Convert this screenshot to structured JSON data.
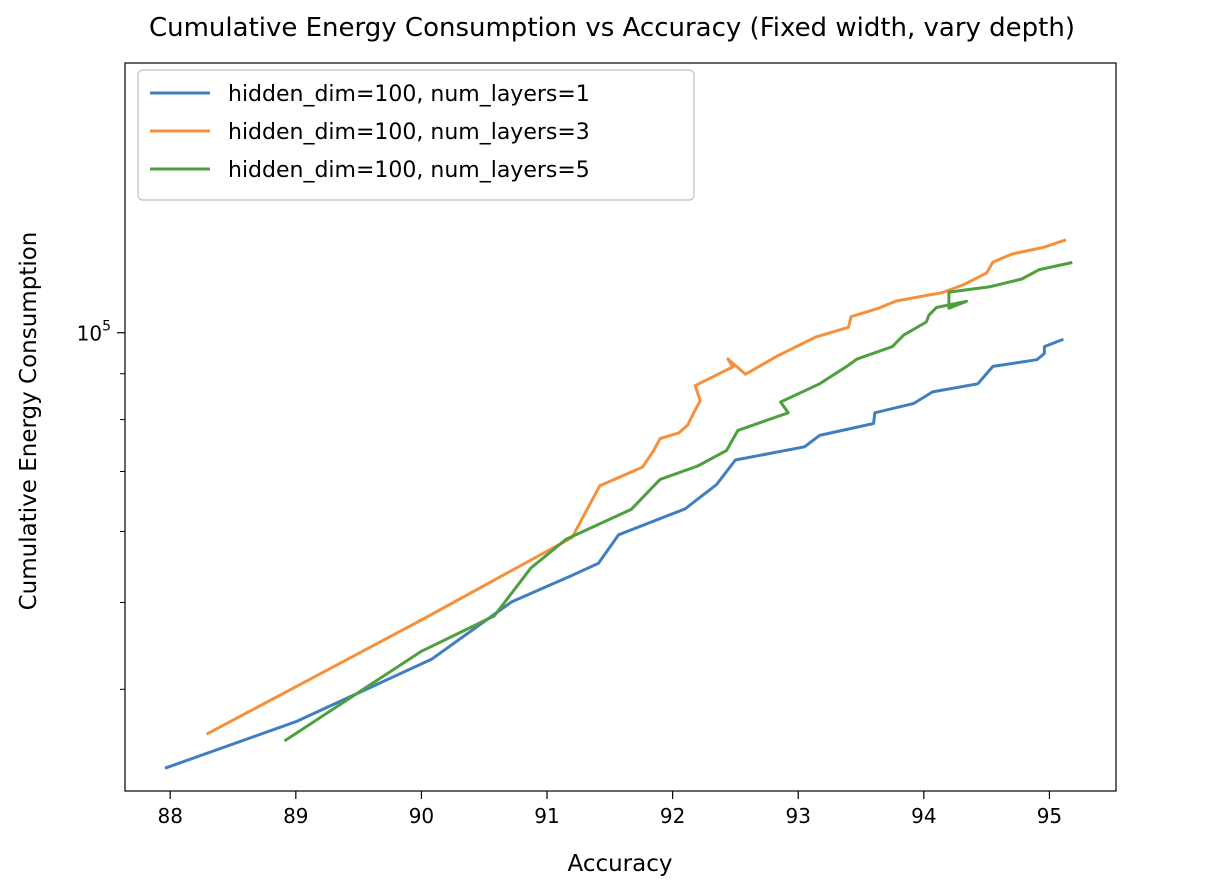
{
  "chart_data": {
    "type": "line",
    "title": "Cumulative Energy Consumption vs Accuracy (Fixed width, vary depth)",
    "xlabel": "Accuracy",
    "ylabel": "Cumulative Energy Consumption",
    "yscale": "log",
    "xlim": [
      87.64,
      95.53
    ],
    "ylim": [
      30800,
      200000
    ],
    "x_ticks": [
      88,
      89,
      90,
      91,
      92,
      93,
      94,
      95
    ],
    "y_major_tick": {
      "value": 100000,
      "base": "10",
      "exponent": "5"
    },
    "y_minor_ticks": [
      40000,
      50000,
      60000,
      70000,
      80000,
      90000
    ],
    "grid": false,
    "legend_position": "top-left",
    "series": [
      {
        "name": "hidden_dim=100, num_layers=1",
        "color": "#3f7fbd",
        "x": [
          87.97,
          89.0,
          90.08,
          90.72,
          91.2,
          91.41,
          91.57,
          92.1,
          92.35,
          92.5,
          93.05,
          93.17,
          93.6,
          93.61,
          93.92,
          94.07,
          94.43,
          94.55,
          94.9,
          94.96,
          94.96,
          95.1
        ],
        "y": [
          32700,
          36800,
          43200,
          50100,
          53600,
          55300,
          59500,
          63600,
          67700,
          72100,
          74600,
          76800,
          79200,
          81400,
          83400,
          85900,
          87700,
          91700,
          93300,
          94800,
          96500,
          98200
        ]
      },
      {
        "name": "hidden_dim=100, num_layers=3",
        "color": "#f5913d",
        "x": [
          88.3,
          90.0,
          91.2,
          91.42,
          91.76,
          91.85,
          91.9,
          92.05,
          92.12,
          92.17,
          92.22,
          92.18,
          92.48,
          92.44,
          92.58,
          92.84,
          93.14,
          93.4,
          93.42,
          93.64,
          93.78,
          94.15,
          94.32,
          94.5,
          94.55,
          94.7,
          94.96,
          95.12
        ],
        "y": [
          35700,
          47800,
          59100,
          67500,
          70800,
          73900,
          76200,
          77300,
          78900,
          81500,
          84000,
          87300,
          91600,
          93500,
          89900,
          94300,
          98900,
          101400,
          104200,
          106500,
          108500,
          110900,
          113200,
          116600,
          119900,
          122400,
          124600,
          126800
        ]
      },
      {
        "name": "hidden_dim=100, num_layers=5",
        "color": "#4e9f3d",
        "x": [
          88.92,
          90.0,
          90.58,
          90.87,
          91.15,
          91.67,
          91.9,
          92.2,
          92.43,
          92.52,
          92.92,
          92.86,
          92.86,
          93.17,
          93.38,
          93.47,
          93.75,
          93.84,
          94.02,
          94.04,
          94.1,
          94.34,
          94.2,
          94.2,
          94.52,
          94.78,
          94.92,
          95.17
        ],
        "y": [
          35100,
          44100,
          48300,
          54600,
          58800,
          63500,
          68600,
          71000,
          73900,
          77800,
          81400,
          83700,
          83700,
          87700,
          91600,
          93500,
          96500,
          99400,
          102800,
          104600,
          106700,
          108400,
          106500,
          111000,
          112500,
          114800,
          117600,
          119700
        ]
      }
    ]
  }
}
